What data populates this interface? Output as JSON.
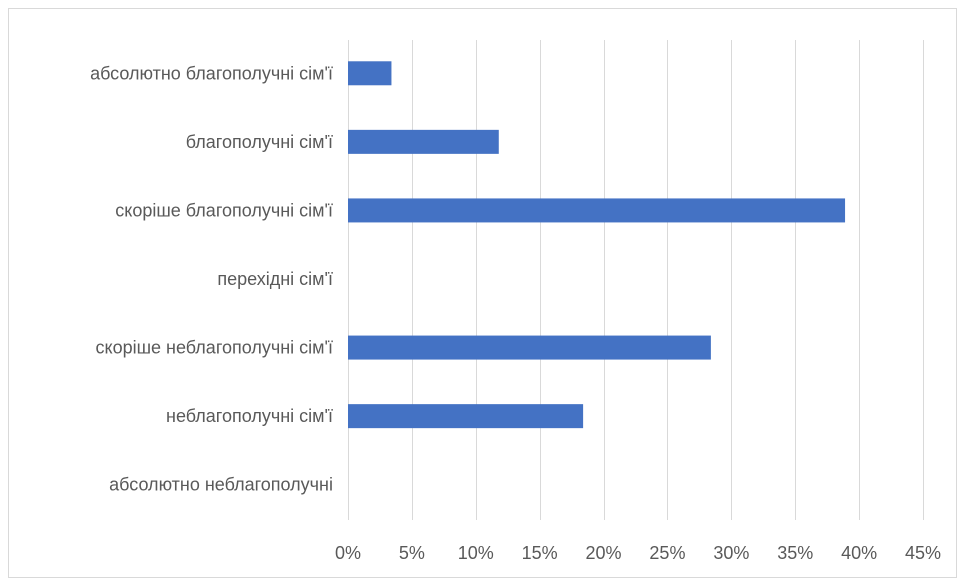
{
  "chart_data": {
    "type": "bar",
    "orientation": "horizontal",
    "categories": [
      "абсолютно благополучні сім'ї",
      "благополучні сім'ї",
      "скоріше благополучні сім'ї",
      "перехідні  сім'ї",
      "скоріше неблагополучні сім'ї",
      "неблагополучні сім'ї",
      "абсолютно неблагополучні"
    ],
    "values": [
      3.4,
      11.8,
      38.9,
      0,
      28.4,
      18.4,
      0
    ],
    "x_ticks": [
      "0%",
      "5%",
      "10%",
      "15%",
      "20%",
      "25%",
      "30%",
      "35%",
      "40%",
      "45%"
    ],
    "xlim": [
      0,
      45
    ],
    "unit": "%",
    "grid": "vertical",
    "legend": "none",
    "bar_color": "#4472c4",
    "grid_color": "#d9d9d9",
    "text_color": "#595959"
  }
}
